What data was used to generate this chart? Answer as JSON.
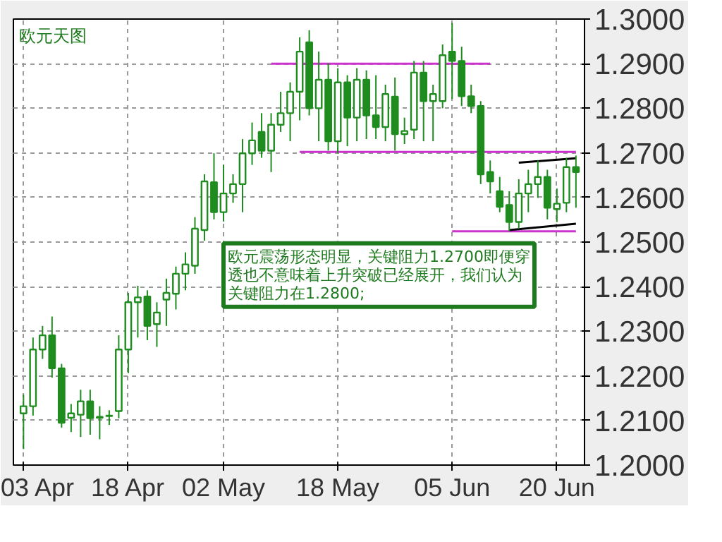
{
  "chart_data": {
    "type": "candlestick",
    "title": "欧元天图",
    "categories": [
      "03 Apr",
      null,
      null,
      null,
      null,
      null,
      null,
      null,
      null,
      null,
      null,
      "18 Apr",
      null,
      null,
      null,
      null,
      null,
      null,
      null,
      null,
      null,
      "02 May",
      null,
      null,
      null,
      null,
      null,
      null,
      null,
      null,
      null,
      null,
      null,
      "18 May",
      null,
      null,
      null,
      null,
      null,
      null,
      null,
      null,
      null,
      null,
      null,
      "05 Jun",
      null,
      null,
      null,
      null,
      null,
      null,
      null,
      null,
      null,
      null,
      "20 Jun",
      null,
      null
    ],
    "ohlc": [
      [
        1.2116,
        1.2158,
        1.2036,
        1.2132
      ],
      [
        1.2132,
        1.2286,
        1.2111,
        1.2259
      ],
      [
        1.2259,
        1.2312,
        1.2238,
        1.2291
      ],
      [
        1.2291,
        1.2333,
        1.2196,
        1.2217
      ],
      [
        1.2217,
        1.2227,
        1.2084,
        1.2095
      ],
      [
        1.2106,
        1.2137,
        1.2074,
        1.2116
      ],
      [
        1.2113,
        1.2169,
        1.2063,
        1.2143
      ],
      [
        1.2143,
        1.2169,
        1.2068,
        1.2105
      ],
      [
        1.2106,
        1.2132,
        1.2058,
        1.2108
      ],
      [
        1.211,
        1.2123,
        1.209,
        1.2111
      ],
      [
        1.2121,
        1.2291,
        1.2105,
        1.2259
      ],
      [
        1.2259,
        1.2386,
        1.2206,
        1.2365
      ],
      [
        1.2365,
        1.2402,
        1.2286,
        1.2376
      ],
      [
        1.2378,
        1.2392,
        1.228,
        1.2312
      ],
      [
        1.2316,
        1.2365,
        1.2265,
        1.2342
      ],
      [
        1.2371,
        1.2418,
        1.2312,
        1.2386
      ],
      [
        1.2384,
        1.2445,
        1.2349,
        1.2429
      ],
      [
        1.2429,
        1.2477,
        1.2392,
        1.245
      ],
      [
        1.2447,
        1.2556,
        1.2429,
        1.253
      ],
      [
        1.2527,
        1.2652,
        1.2503,
        1.2636
      ],
      [
        1.2634,
        1.2699,
        1.2551,
        1.2567
      ],
      [
        1.2567,
        1.2673,
        1.2546,
        1.2609
      ],
      [
        1.2609,
        1.2652,
        1.2588,
        1.263
      ],
      [
        1.263,
        1.2731,
        1.2567,
        1.2699
      ],
      [
        1.2699,
        1.2768,
        1.2673,
        1.2728
      ],
      [
        1.2747,
        1.2789,
        1.2689,
        1.2705
      ],
      [
        1.2705,
        1.2789,
        1.2657,
        1.2763
      ],
      [
        1.2763,
        1.2837,
        1.2747,
        1.2789
      ],
      [
        1.2789,
        1.2858,
        1.2726,
        1.2837
      ],
      [
        1.2837,
        1.2959,
        1.2773,
        1.2927
      ],
      [
        1.2948,
        1.2975,
        1.2784,
        1.28
      ],
      [
        1.28,
        1.2927,
        1.2726,
        1.2864
      ],
      [
        1.2864,
        1.2901,
        1.2705,
        1.2726
      ],
      [
        1.2726,
        1.289,
        1.2699,
        1.2858
      ],
      [
        1.2858,
        1.2874,
        1.2715,
        1.2779
      ],
      [
        1.2779,
        1.289,
        1.2726,
        1.2864
      ],
      [
        1.2864,
        1.2885,
        1.2731,
        1.2784
      ],
      [
        1.2784,
        1.2874,
        1.2731,
        1.2758
      ],
      [
        1.2758,
        1.2853,
        1.2726,
        1.2832
      ],
      [
        1.2826,
        1.2869,
        1.2705,
        1.2742
      ],
      [
        1.2742,
        1.2779,
        1.272,
        1.2749
      ],
      [
        1.2752,
        1.2906,
        1.2731,
        1.288
      ],
      [
        1.288,
        1.2906,
        1.2726,
        1.2816
      ],
      [
        1.2816,
        1.2853,
        1.2726,
        1.2832
      ],
      [
        1.2816,
        1.2943,
        1.28,
        1.2919
      ],
      [
        1.2927,
        1.2991,
        1.2821,
        1.2906
      ],
      [
        1.2906,
        1.2938,
        1.2805,
        1.2827
      ],
      [
        1.2827,
        1.2853,
        1.2789,
        1.2805
      ],
      [
        1.2805,
        1.2816,
        1.263,
        1.2652
      ],
      [
        1.2657,
        1.2683,
        1.2609,
        1.2636
      ],
      [
        1.2614,
        1.2646,
        1.2567,
        1.2579
      ],
      [
        1.2583,
        1.2614,
        1.2524,
        1.2545
      ],
      [
        1.2545,
        1.2641,
        1.253,
        1.2609
      ],
      [
        1.2609,
        1.2662,
        1.2567,
        1.263
      ],
      [
        1.263,
        1.2683,
        1.2599,
        1.2646
      ],
      [
        1.2646,
        1.2662,
        1.2551,
        1.2577
      ],
      [
        1.2574,
        1.262,
        1.2545,
        1.2586
      ],
      [
        1.2588,
        1.2689,
        1.2567,
        1.2668
      ],
      [
        1.2668,
        1.2694,
        1.2577,
        1.2657
      ]
    ],
    "color": "#1e8c1e",
    "series": [
      {
        "type": "line",
        "color": "#cc33cc",
        "values": [
          null,
          null,
          null,
          null,
          null,
          null,
          null,
          null,
          null,
          null,
          null,
          null,
          null,
          null,
          null,
          null,
          null,
          null,
          null,
          null,
          null,
          null,
          null,
          null,
          null,
          null,
          1.29,
          null,
          null,
          null,
          null,
          null,
          null,
          null,
          null,
          null,
          null,
          null,
          null,
          null,
          null,
          null,
          null,
          null,
          null,
          null,
          null,
          null,
          null,
          1.29,
          null,
          null,
          null,
          null,
          null,
          null,
          null,
          null,
          null
        ]
      },
      {
        "type": "line",
        "color": "#cc33cc",
        "values": [
          null,
          null,
          null,
          null,
          null,
          null,
          null,
          null,
          null,
          null,
          null,
          null,
          null,
          null,
          null,
          null,
          null,
          null,
          null,
          null,
          null,
          null,
          null,
          null,
          null,
          null,
          null,
          null,
          null,
          1.2702,
          null,
          null,
          null,
          null,
          null,
          null,
          null,
          null,
          null,
          null,
          null,
          null,
          null,
          null,
          null,
          null,
          null,
          null,
          null,
          null,
          null,
          null,
          null,
          null,
          null,
          null,
          null,
          null,
          1.2702
        ]
      },
      {
        "type": "line",
        "color": "#cc33cc",
        "values": [
          null,
          null,
          null,
          null,
          null,
          null,
          null,
          null,
          null,
          null,
          null,
          null,
          null,
          null,
          null,
          null,
          null,
          null,
          null,
          null,
          null,
          null,
          null,
          null,
          null,
          null,
          null,
          null,
          null,
          null,
          null,
          null,
          null,
          null,
          null,
          null,
          null,
          null,
          null,
          null,
          null,
          null,
          null,
          null,
          null,
          1.2524,
          null,
          null,
          null,
          null,
          null,
          null,
          null,
          null,
          null,
          null,
          null,
          null,
          1.2524
        ]
      },
      {
        "type": "line",
        "color": "#000000",
        "values": [
          null,
          null,
          null,
          null,
          null,
          null,
          null,
          null,
          null,
          null,
          null,
          null,
          null,
          null,
          null,
          null,
          null,
          null,
          null,
          null,
          null,
          null,
          null,
          null,
          null,
          null,
          null,
          null,
          null,
          null,
          null,
          null,
          null,
          null,
          null,
          null,
          null,
          null,
          null,
          null,
          null,
          null,
          null,
          null,
          null,
          null,
          null,
          null,
          null,
          null,
          null,
          null,
          1.2678,
          null,
          null,
          null,
          null,
          null,
          1.2688
        ]
      },
      {
        "type": "line",
        "color": "#000000",
        "values": [
          null,
          null,
          null,
          null,
          null,
          null,
          null,
          null,
          null,
          null,
          null,
          null,
          null,
          null,
          null,
          null,
          null,
          null,
          null,
          null,
          null,
          null,
          null,
          null,
          null,
          null,
          null,
          null,
          null,
          null,
          null,
          null,
          null,
          null,
          null,
          null,
          null,
          null,
          null,
          null,
          null,
          null,
          null,
          null,
          null,
          null,
          null,
          null,
          null,
          null,
          null,
          1.2527,
          null,
          null,
          null,
          null,
          null,
          null,
          1.2541
        ]
      }
    ],
    "ylim": [
      1.2,
      1.3
    ],
    "yticks": [
      {
        "value": 1.2,
        "label": "1.2000"
      },
      {
        "value": 1.21,
        "label": "1.2100"
      },
      {
        "value": 1.22,
        "label": "1.2200"
      },
      {
        "value": 1.23,
        "label": "1.2300"
      },
      {
        "value": 1.24,
        "label": "1.2400"
      },
      {
        "value": 1.25,
        "label": "1.2500"
      },
      {
        "value": 1.26,
        "label": "1.2600"
      },
      {
        "value": 1.27,
        "label": "1.2700"
      },
      {
        "value": 1.28,
        "label": "1.2800"
      },
      {
        "value": 1.29,
        "label": "1.2900"
      },
      {
        "value": 1.3,
        "label": "1.3000"
      }
    ],
    "grid": true,
    "annotations": [
      "欧元震荡形态明显，关键阻力1.2700即便穿透也不意味着上升突破已经展开，我们认为关键阻力在1.2800;"
    ]
  }
}
